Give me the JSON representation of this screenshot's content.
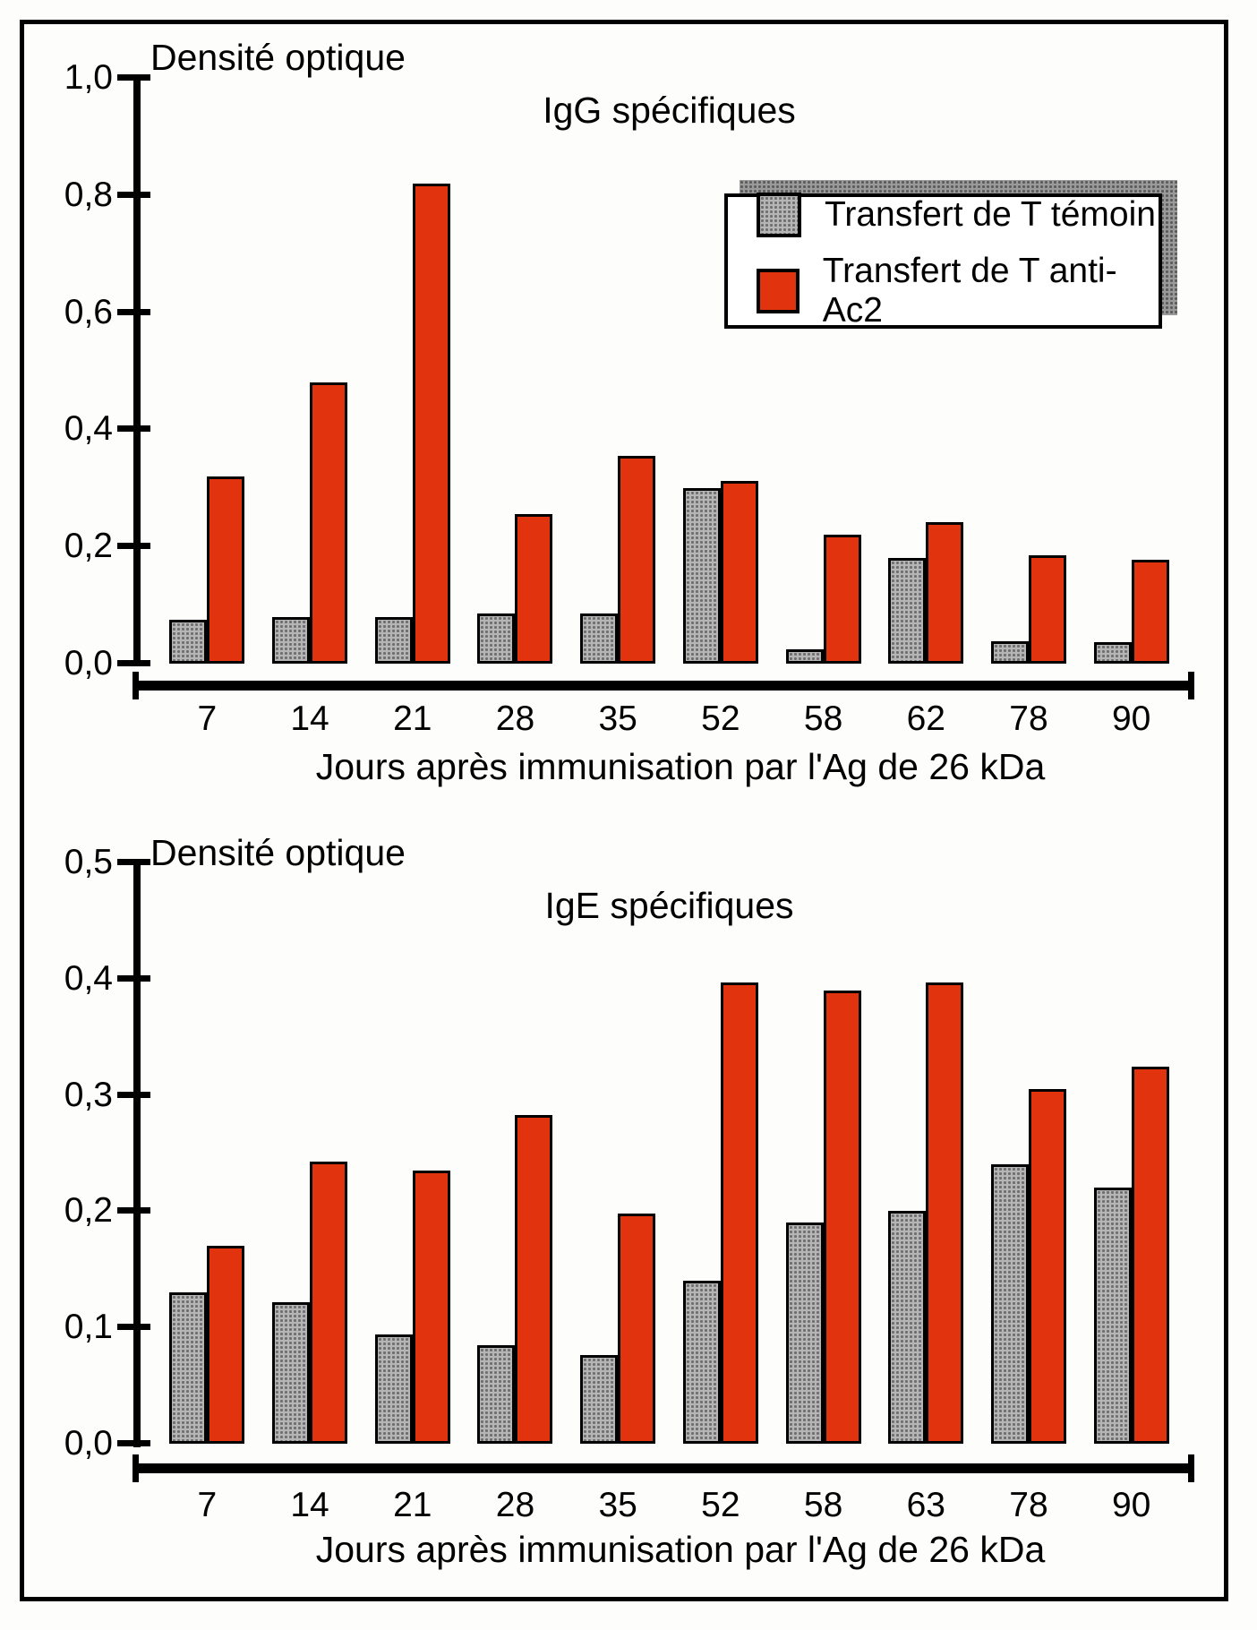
{
  "figure": {
    "background": "#fdfdfb",
    "frame_color": "#000000"
  },
  "colors": {
    "temoin_fill": "#b5b5b5",
    "anti_ac2_fill": "#e1330e",
    "legend_shadow": "#9a9a9a",
    "outline": "#000000"
  },
  "legend": {
    "items": [
      {
        "series": "temoin",
        "label": "Transfert de T témoin"
      },
      {
        "series": "anti_ac2",
        "label": "Transfert de T anti-Ac2"
      }
    ]
  },
  "chart_data": [
    {
      "type": "bar",
      "title": "IgG spécifiques",
      "ylabel": "Densité optique",
      "xlabel": "Jours après immunisation par l'Ag de 26 kDa",
      "categories": [
        "7",
        "14",
        "21",
        "28",
        "35",
        "52",
        "58",
        "62",
        "78",
        "90"
      ],
      "series": [
        {
          "name": "Transfert de T témoin",
          "values": [
            0.075,
            0.08,
            0.08,
            0.085,
            0.085,
            0.3,
            0.025,
            0.18,
            0.038,
            0.036
          ]
        },
        {
          "name": "Transfert de T anti-Ac2",
          "values": [
            0.32,
            0.48,
            0.82,
            0.255,
            0.355,
            0.312,
            0.22,
            0.242,
            0.185,
            0.178
          ]
        }
      ],
      "ylim": [
        0,
        1.0
      ],
      "ytick_labels": [
        "1,0",
        "0,8",
        "0,6",
        "0,4",
        "0,2",
        "0,0"
      ],
      "ytick_values": [
        1.0,
        0.8,
        0.6,
        0.4,
        0.2,
        0.0
      ],
      "grid": false,
      "legend_position": "top-right"
    },
    {
      "type": "bar",
      "title": "IgE spécifiques",
      "ylabel": "Densité optique",
      "xlabel": "Jours après immunisation par l'Ag de 26 kDa",
      "categories": [
        "7",
        "14",
        "21",
        "28",
        "35",
        "52",
        "58",
        "63",
        "78",
        "90"
      ],
      "series": [
        {
          "name": "Transfert de T témoin",
          "values": [
            0.13,
            0.122,
            0.094,
            0.085,
            0.076,
            0.14,
            0.19,
            0.2,
            0.24,
            0.22
          ]
        },
        {
          "name": "Transfert de T anti-Ac2",
          "values": [
            0.17,
            0.243,
            0.235,
            0.283,
            0.198,
            0.397,
            0.39,
            0.397,
            0.305,
            0.324
          ]
        }
      ],
      "ylim": [
        0,
        0.5
      ],
      "ytick_labels": [
        "0,5",
        "0,4",
        "0,3",
        "0,2",
        "0,1",
        "0,0"
      ],
      "ytick_values": [
        0.5,
        0.4,
        0.3,
        0.2,
        0.1,
        0.0
      ],
      "grid": false,
      "legend_position": "none"
    }
  ]
}
